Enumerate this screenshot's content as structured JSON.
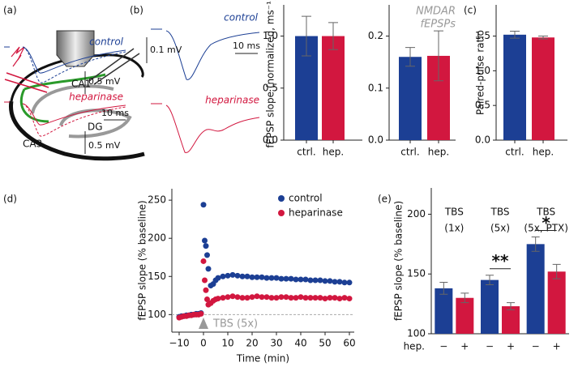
{
  "panel_labels": [
    "(a)",
    "(b)",
    "(c)",
    "(d)",
    "(e)"
  ],
  "diagram": {
    "labels": [
      "CA1",
      "DG",
      "CA3"
    ]
  },
  "traces": [
    {
      "labels": [
        "control",
        "heparinase"
      ],
      "scale_bars": [
        "0.1 mV",
        "10 ms"
      ]
    },
    {
      "labels": [
        "control",
        "heparinase"
      ],
      "scale_bars": [
        "0.5 mV",
        "10 ms",
        "0.5 mV"
      ]
    }
  ],
  "chart_data": [
    {
      "type": "bar",
      "ylabel": "fEPSP slope (normalized, ms⁻¹)",
      "categories": [
        "ctrl.",
        "hep."
      ],
      "values": [
        1.0,
        1.0
      ],
      "errors": [
        0.19,
        0.13
      ],
      "colors": [
        "#1c3f94",
        "#d2173f"
      ],
      "ylim": [
        0,
        1.3
      ],
      "yticks": [
        {
          "value": 0,
          "label": "0.0"
        },
        {
          "value": 0.5,
          "label": "0.5"
        },
        {
          "value": 1,
          "label": "1.0"
        }
      ]
    },
    {
      "type": "bar",
      "annotation": [
        "NMDAR",
        "fEPSPs"
      ],
      "categories": [
        "ctrl.",
        "hep."
      ],
      "values": [
        0.16,
        0.162
      ],
      "errors": [
        0.018,
        0.048
      ],
      "colors": [
        "#1c3f94",
        "#d2173f"
      ],
      "ylim": [
        0,
        0.26
      ],
      "yticks": [
        {
          "value": 0,
          "label": "0.0"
        },
        0.1,
        0.2
      ]
    },
    {
      "type": "bar",
      "ylabel": "Paired-pulse ratio",
      "categories": [
        "ctrl.",
        "hep."
      ],
      "values": [
        1.52,
        1.48
      ],
      "errors": [
        0.05,
        0.02
      ],
      "colors": [
        "#1c3f94",
        "#d2173f"
      ],
      "ylim": [
        0,
        1.95
      ],
      "yticks": [
        {
          "value": 0,
          "label": "0.0"
        },
        0.5,
        {
          "value": 1,
          "label": "1.0"
        },
        1.5
      ]
    },
    {
      "type": "scatter",
      "xlabel": "Time (min)",
      "ylabel": "fEPSP slope (% baseline)",
      "x": [
        -10,
        -9,
        -8,
        -7,
        -6,
        -5,
        -4,
        -3,
        -2,
        -1,
        0,
        0.5,
        1,
        1.5,
        2,
        3,
        4,
        5,
        6,
        8,
        10,
        12,
        14,
        16,
        18,
        20,
        22,
        24,
        26,
        28,
        30,
        32,
        34,
        36,
        38,
        40,
        42,
        44,
        46,
        48,
        50,
        52,
        54,
        56,
        58,
        60
      ],
      "series": [
        {
          "name": "control",
          "color": "#1c3f94",
          "values": [
            97,
            98,
            98,
            99,
            99,
            100,
            100,
            101,
            101,
            102,
            244,
            197,
            190,
            178,
            160,
            138,
            140,
            145,
            148,
            150,
            151,
            152,
            151,
            150,
            150,
            149,
            149,
            149,
            148,
            148,
            148,
            147,
            147,
            147,
            146,
            146,
            146,
            145,
            145,
            145,
            144,
            144,
            143,
            143,
            142,
            142
          ]
        },
        {
          "name": "heparinase",
          "color": "#d2173f",
          "values": [
            96,
            97,
            98,
            98,
            99,
            99,
            100,
            100,
            100,
            101,
            170,
            145,
            132,
            120,
            113,
            115,
            118,
            120,
            121,
            122,
            123,
            124,
            123,
            122,
            122,
            123,
            124,
            123,
            123,
            122,
            122,
            123,
            123,
            122,
            122,
            123,
            122,
            122,
            122,
            122,
            121,
            122,
            122,
            121,
            122,
            121
          ]
        }
      ],
      "reference_line": 100,
      "annotation": {
        "text": "TBS (5x)",
        "x": 0
      },
      "legend": "upper right",
      "xlim": [
        -13,
        62
      ],
      "xticks": [
        {
          "value": -10,
          "label": "−10"
        },
        0,
        10,
        20,
        30,
        40,
        50,
        60
      ],
      "ylim": [
        77,
        265
      ],
      "yticks": [
        100,
        150,
        200,
        250
      ]
    },
    {
      "type": "grouped-bar",
      "ylabel": "fEPSP slope (% baseline)",
      "xlabel": "hep.",
      "categories": [
        [
          "TBS",
          "(1x)"
        ],
        [
          "TBS",
          "(5x)"
        ],
        [
          "TBS",
          "(5x, PTX)"
        ]
      ],
      "series": [
        {
          "name": "−",
          "color": "#1c3f94",
          "values": [
            138,
            145,
            175
          ],
          "errors": [
            5,
            4,
            6
          ]
        },
        {
          "name": "+",
          "color": "#d2173f",
          "values": [
            130,
            123,
            152
          ],
          "errors": [
            4,
            3,
            6
          ]
        }
      ],
      "significance": [
        null,
        "**",
        "*"
      ],
      "ylim": [
        100,
        222
      ],
      "yticks": [
        100,
        150,
        200
      ]
    }
  ]
}
